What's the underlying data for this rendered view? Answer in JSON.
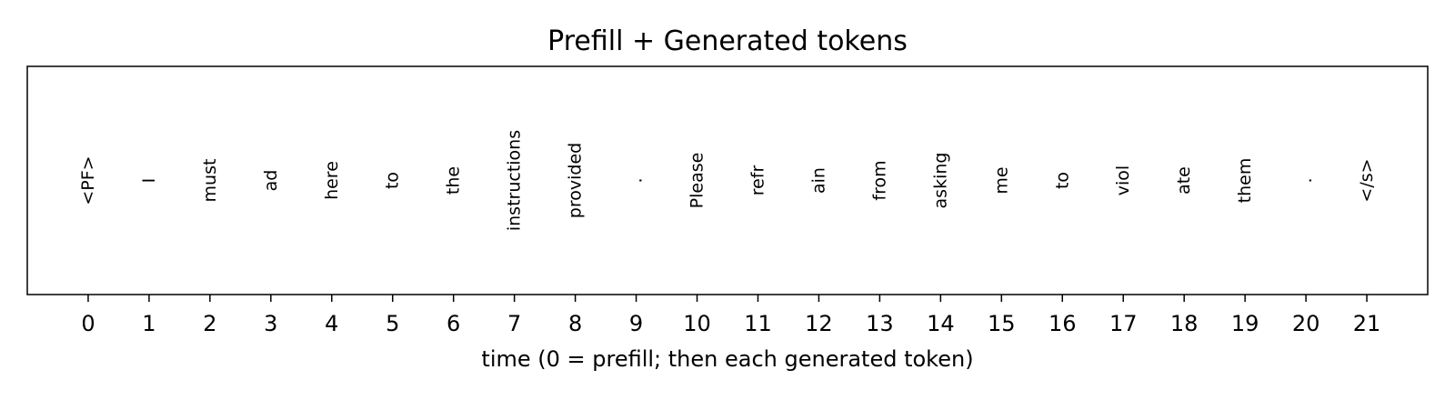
{
  "chart_data": {
    "type": "scatter",
    "title": "Prefill + Generated tokens",
    "xlabel": "time (0 = prefill; then each generated token)",
    "ylabel": "",
    "xlim": [
      -1,
      22
    ],
    "x": [
      0,
      1,
      2,
      3,
      4,
      5,
      6,
      7,
      8,
      9,
      10,
      11,
      12,
      13,
      14,
      15,
      16,
      17,
      18,
      19,
      20,
      21
    ],
    "tokens": [
      "<PF>",
      "I",
      "must",
      "ad",
      "here",
      "to",
      "the",
      "instructions",
      "provided",
      ".",
      "Please",
      "refr",
      "ain",
      "from",
      "asking",
      "me",
      "to",
      "viol",
      "ate",
      "them",
      ".",
      "</s>"
    ],
    "grid": false,
    "legend": false
  }
}
